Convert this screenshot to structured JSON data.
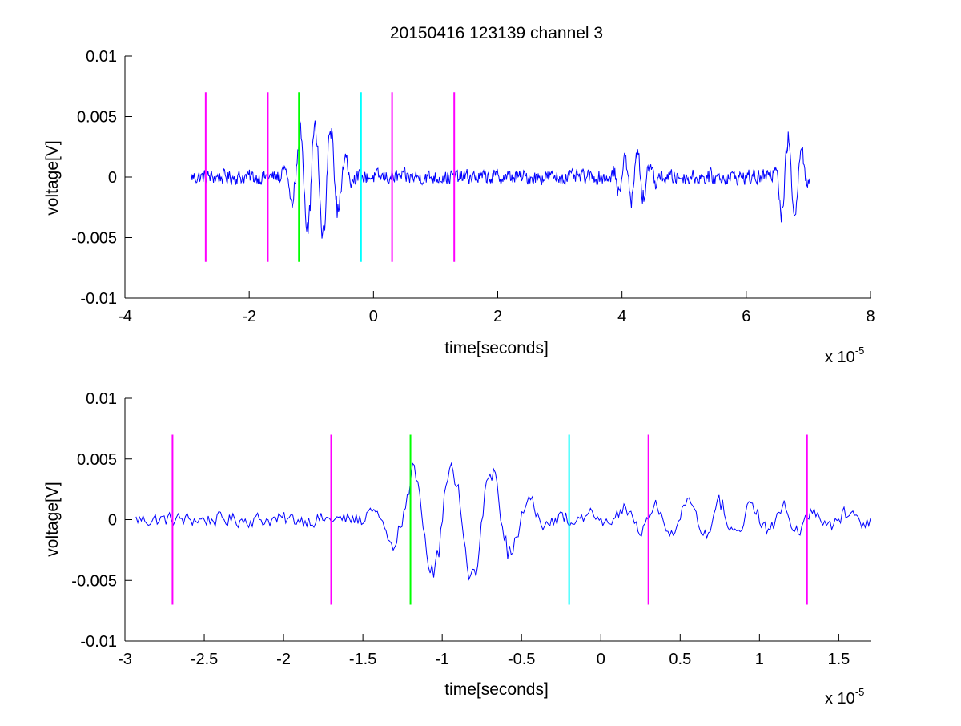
{
  "chart_data": [
    {
      "type": "line",
      "title": "20150416 123139 channel 3",
      "xlabel": "time[seconds]",
      "ylabel": "voltage[V]",
      "x_multiplier": {
        "base": "x 10",
        "exponent": "-5"
      },
      "xlim": [
        -4,
        8
      ],
      "ylim": [
        -0.01,
        0.01
      ],
      "x_ticks": [
        -4,
        -2,
        0,
        2,
        4,
        6,
        8
      ],
      "x_tick_labels": [
        "-4",
        "-2",
        "0",
        "2",
        "4",
        "6",
        "8"
      ],
      "y_ticks": [
        0.01,
        0.005,
        0,
        -0.005,
        -0.01
      ],
      "y_tick_labels": [
        "0.01",
        "0.005",
        "0",
        "-0.005",
        "-0.01"
      ],
      "grid": false,
      "signal": {
        "color": "#0000ff",
        "x_range": [
          -2.93,
          7.02
        ],
        "baseline_noise": 0.0008,
        "bursts": [
          {
            "x_start": -1.5,
            "x_end": -0.3,
            "amplitude": 0.0048,
            "period": 0.25
          },
          {
            "x_start": 3.8,
            "x_end": 4.6,
            "amplitude": 0.0022,
            "period": 0.2
          },
          {
            "x_start": 6.4,
            "x_end": 7.0,
            "amplitude": 0.0038,
            "period": 0.22
          }
        ]
      },
      "markers": [
        {
          "x": -2.7,
          "y0": -0.007,
          "y1": 0.007,
          "color": "#ff00ff"
        },
        {
          "x": -1.7,
          "y0": -0.007,
          "y1": 0.007,
          "color": "#ff00ff"
        },
        {
          "x": -1.2,
          "y0": -0.007,
          "y1": 0.007,
          "color": "#00ff00"
        },
        {
          "x": -0.2,
          "y0": -0.007,
          "y1": 0.007,
          "color": "#00ffff"
        },
        {
          "x": 0.3,
          "y0": -0.007,
          "y1": 0.007,
          "color": "#ff00ff"
        },
        {
          "x": 1.3,
          "y0": -0.007,
          "y1": 0.007,
          "color": "#ff00ff"
        }
      ]
    },
    {
      "type": "line",
      "title": "",
      "xlabel": "time[seconds]",
      "ylabel": "voltage[V]",
      "x_multiplier": {
        "base": "x 10",
        "exponent": "-5"
      },
      "xlim": [
        -3.0,
        1.7
      ],
      "ylim": [
        -0.01,
        0.01
      ],
      "x_ticks": [
        -3,
        -2.5,
        -2,
        -1.5,
        -1,
        -0.5,
        0,
        0.5,
        1,
        1.5
      ],
      "x_tick_labels": [
        "-3",
        "-2.5",
        "-2",
        "-1.5",
        "-1",
        "-0.5",
        "0",
        "0.5",
        "1",
        "1.5"
      ],
      "y_ticks": [
        0.01,
        0.005,
        0,
        -0.005,
        -0.01
      ],
      "y_tick_labels": [
        "0.01",
        "0.005",
        "0",
        "-0.005",
        "-0.01"
      ],
      "grid": false,
      "signal": {
        "color": "#0000ff",
        "x_range": [
          -2.93,
          1.7
        ],
        "baseline_noise": 0.0008,
        "bursts": [
          {
            "x_start": -1.5,
            "x_end": -0.3,
            "amplitude": 0.0048,
            "period": 0.25
          },
          {
            "x_start": -0.3,
            "x_end": 1.7,
            "amplitude": 0.0014,
            "period": 0.2
          }
        ]
      },
      "markers": [
        {
          "x": -2.7,
          "y0": -0.007,
          "y1": 0.007,
          "color": "#ff00ff"
        },
        {
          "x": -1.7,
          "y0": -0.007,
          "y1": 0.007,
          "color": "#ff00ff"
        },
        {
          "x": -1.2,
          "y0": -0.007,
          "y1": 0.007,
          "color": "#00ff00"
        },
        {
          "x": -0.2,
          "y0": -0.007,
          "y1": 0.007,
          "color": "#00ffff"
        },
        {
          "x": 0.3,
          "y0": -0.007,
          "y1": 0.007,
          "color": "#ff00ff"
        },
        {
          "x": 1.3,
          "y0": -0.007,
          "y1": 0.007,
          "color": "#ff00ff"
        }
      ]
    }
  ]
}
